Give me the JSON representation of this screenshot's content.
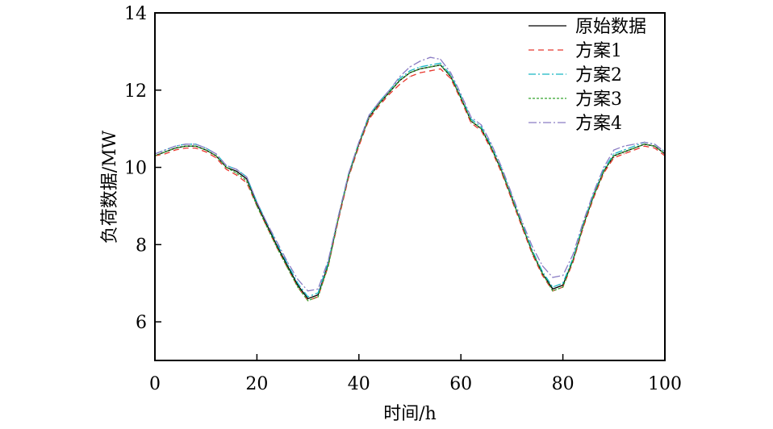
{
  "chart_data": {
    "type": "line",
    "xlabel": "时间/h",
    "ylabel": "负荷数据/MW",
    "xlim": [
      0,
      100
    ],
    "ylim": [
      5,
      14
    ],
    "xticks": [
      0,
      20,
      40,
      60,
      80,
      100
    ],
    "yticks": [
      6,
      8,
      10,
      12,
      14
    ],
    "grid": false,
    "legend_position": "top-right",
    "x": [
      0,
      2,
      4,
      6,
      8,
      10,
      12,
      14,
      16,
      18,
      20,
      22,
      24,
      26,
      28,
      30,
      32,
      34,
      36,
      38,
      40,
      42,
      44,
      46,
      48,
      50,
      52,
      54,
      56,
      58,
      60,
      62,
      64,
      66,
      68,
      70,
      72,
      74,
      76,
      78,
      80,
      82,
      84,
      86,
      88,
      90,
      92,
      94,
      96,
      98,
      100
    ],
    "series": [
      {
        "name": "原始数据",
        "color": "#000000",
        "dash": "",
        "values": [
          10.3,
          10.4,
          10.5,
          10.55,
          10.55,
          10.45,
          10.3,
          10.0,
          9.9,
          9.7,
          9.05,
          8.5,
          7.95,
          7.45,
          6.95,
          6.6,
          6.7,
          7.5,
          8.7,
          9.8,
          10.6,
          11.3,
          11.65,
          11.95,
          12.25,
          12.45,
          12.55,
          12.6,
          12.65,
          12.35,
          11.8,
          11.2,
          11.0,
          10.5,
          9.9,
          9.2,
          8.5,
          7.8,
          7.25,
          6.85,
          6.95,
          7.6,
          8.5,
          9.25,
          9.9,
          10.3,
          10.4,
          10.5,
          10.6,
          10.55,
          10.35
        ]
      },
      {
        "name": "方案1",
        "color": "#e8362c",
        "dash": "7,5",
        "values": [
          10.3,
          10.35,
          10.45,
          10.5,
          10.5,
          10.4,
          10.25,
          9.95,
          9.8,
          9.6,
          9.0,
          8.45,
          7.9,
          7.4,
          6.9,
          6.55,
          6.65,
          7.45,
          8.65,
          9.75,
          10.55,
          11.25,
          11.6,
          11.9,
          12.15,
          12.35,
          12.45,
          12.5,
          12.55,
          12.3,
          11.75,
          11.15,
          10.95,
          10.45,
          9.85,
          9.15,
          8.45,
          7.75,
          7.2,
          6.8,
          6.9,
          7.55,
          8.45,
          9.2,
          9.85,
          10.25,
          10.35,
          10.45,
          10.55,
          10.5,
          10.3
        ]
      },
      {
        "name": "方案2",
        "color": "#17b7c4",
        "dash": "9,3,2,3",
        "values": [
          10.35,
          10.45,
          10.55,
          10.6,
          10.6,
          10.5,
          10.35,
          10.05,
          9.95,
          9.75,
          9.1,
          8.55,
          8.0,
          7.5,
          7.0,
          6.65,
          6.75,
          7.55,
          8.75,
          9.85,
          10.65,
          11.35,
          11.7,
          12.0,
          12.3,
          12.5,
          12.6,
          12.65,
          12.7,
          12.4,
          11.85,
          11.25,
          11.05,
          10.55,
          9.95,
          9.25,
          8.55,
          7.85,
          7.3,
          6.9,
          7.0,
          7.65,
          8.55,
          9.3,
          9.95,
          10.35,
          10.45,
          10.55,
          10.65,
          10.6,
          10.4
        ]
      },
      {
        "name": "方案3",
        "color": "#35a32e",
        "dash": "3,2",
        "values": [
          10.3,
          10.4,
          10.5,
          10.55,
          10.55,
          10.45,
          10.3,
          10.0,
          9.85,
          9.65,
          9.0,
          8.45,
          7.9,
          7.4,
          6.9,
          6.55,
          6.65,
          7.45,
          8.7,
          9.8,
          10.6,
          11.3,
          11.65,
          11.95,
          12.25,
          12.45,
          12.55,
          12.6,
          12.65,
          12.35,
          11.8,
          11.2,
          11.0,
          10.5,
          9.9,
          9.2,
          8.5,
          7.8,
          7.25,
          6.8,
          6.9,
          7.6,
          8.5,
          9.25,
          9.9,
          10.3,
          10.4,
          10.5,
          10.6,
          10.55,
          10.35
        ]
      },
      {
        "name": "方案4",
        "color": "#8a7cc4",
        "dash": "10,3,2,3",
        "values": [
          10.35,
          10.45,
          10.55,
          10.6,
          10.6,
          10.5,
          10.35,
          10.05,
          9.95,
          9.75,
          9.1,
          8.55,
          8.05,
          7.55,
          7.1,
          6.8,
          6.85,
          7.6,
          8.75,
          9.85,
          10.65,
          11.35,
          11.7,
          12.0,
          12.35,
          12.6,
          12.75,
          12.85,
          12.8,
          12.45,
          11.9,
          11.3,
          11.1,
          10.6,
          10.0,
          9.3,
          8.6,
          7.95,
          7.45,
          7.15,
          7.2,
          7.75,
          8.6,
          9.35,
          10.0,
          10.45,
          10.55,
          10.6,
          10.65,
          10.6,
          10.4
        ]
      }
    ]
  }
}
